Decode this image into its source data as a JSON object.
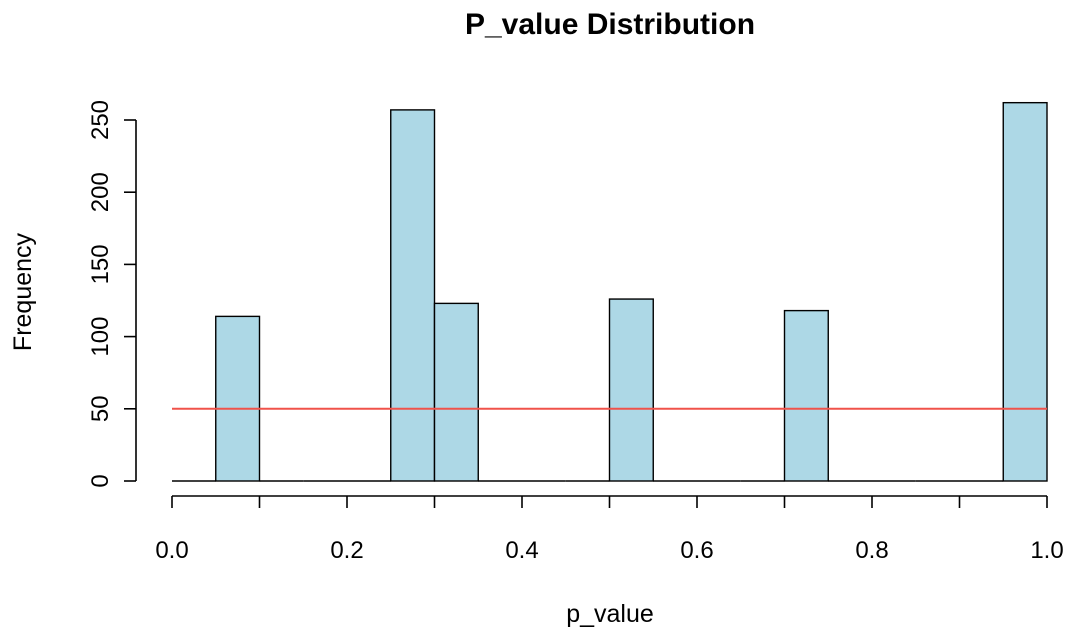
{
  "chart_data": {
    "type": "bar",
    "title": "P_value Distribution",
    "xlabel": "p_value",
    "ylabel": "Frequency",
    "xlim": [
      0,
      1
    ],
    "ylim": [
      0,
      260
    ],
    "bin_width": 0.05,
    "bins": [
      {
        "start": 0.0,
        "end": 0.05,
        "count": 0
      },
      {
        "start": 0.05,
        "end": 0.1,
        "count": 114
      },
      {
        "start": 0.1,
        "end": 0.15,
        "count": 0
      },
      {
        "start": 0.15,
        "end": 0.2,
        "count": 0
      },
      {
        "start": 0.2,
        "end": 0.25,
        "count": 0
      },
      {
        "start": 0.25,
        "end": 0.3,
        "count": 257
      },
      {
        "start": 0.3,
        "end": 0.35,
        "count": 123
      },
      {
        "start": 0.35,
        "end": 0.4,
        "count": 0
      },
      {
        "start": 0.4,
        "end": 0.45,
        "count": 0
      },
      {
        "start": 0.45,
        "end": 0.5,
        "count": 0
      },
      {
        "start": 0.5,
        "end": 0.55,
        "count": 126
      },
      {
        "start": 0.55,
        "end": 0.6,
        "count": 0
      },
      {
        "start": 0.6,
        "end": 0.65,
        "count": 0
      },
      {
        "start": 0.65,
        "end": 0.7,
        "count": 0
      },
      {
        "start": 0.7,
        "end": 0.75,
        "count": 118
      },
      {
        "start": 0.75,
        "end": 0.8,
        "count": 0
      },
      {
        "start": 0.8,
        "end": 0.85,
        "count": 0
      },
      {
        "start": 0.85,
        "end": 0.9,
        "count": 0
      },
      {
        "start": 0.9,
        "end": 0.95,
        "count": 0
      },
      {
        "start": 0.95,
        "end": 1.0,
        "count": 262
      }
    ],
    "x_ticks": [
      {
        "value": 0.0,
        "label": "0.0"
      },
      {
        "value": 0.2,
        "label": "0.2"
      },
      {
        "value": 0.4,
        "label": "0.4"
      },
      {
        "value": 0.6,
        "label": "0.6"
      },
      {
        "value": 0.8,
        "label": "0.8"
      },
      {
        "value": 1.0,
        "label": "1.0"
      }
    ],
    "y_ticks": [
      {
        "value": 0,
        "label": "0"
      },
      {
        "value": 50,
        "label": "50"
      },
      {
        "value": 100,
        "label": "100"
      },
      {
        "value": 150,
        "label": "150"
      },
      {
        "value": 200,
        "label": "200"
      },
      {
        "value": 250,
        "label": "250"
      }
    ],
    "reference_line": {
      "y": 50,
      "x_from": 0.0,
      "x_to": 1.0,
      "color": "#f0524a"
    },
    "bar_fill": "#add8e6",
    "bar_stroke": "#000000",
    "grid": false
  }
}
